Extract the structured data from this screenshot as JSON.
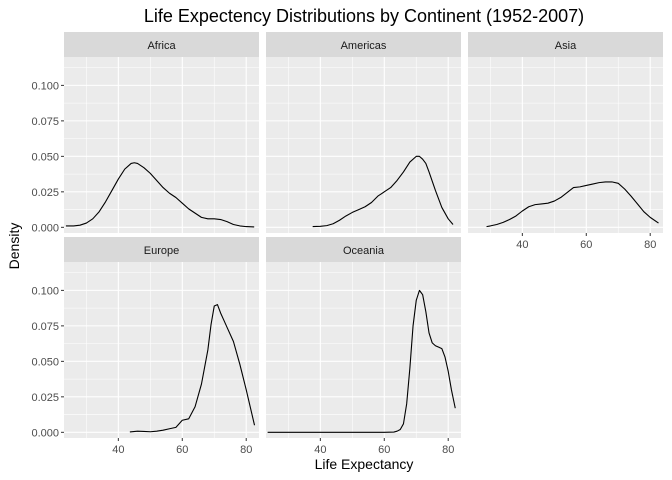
{
  "chart_data": {
    "type": "line",
    "title": "Life Expectency Distributions by Continent (1952-2007)",
    "xlabel": "Life Expectancy",
    "ylabel": "Density",
    "xlim": [
      23,
      84
    ],
    "ylim": [
      -0.004,
      0.12
    ],
    "x_ticks": [
      40,
      60,
      80
    ],
    "x_tick_labels": [
      "40",
      "60",
      "80"
    ],
    "y_ticks": [
      0,
      0.025,
      0.05,
      0.075,
      0.1
    ],
    "y_tick_labels": [
      "0.000",
      "0.025",
      "0.050",
      "0.075",
      "0.100"
    ],
    "grid": true,
    "facet_layout": "wrap, 3 columns",
    "colors": {
      "panel_bg": "#ebebeb",
      "grid_major": "#ffffff",
      "strip_bg": "#d9d9d9",
      "line": "#000000"
    },
    "series": [
      {
        "name": "Africa",
        "x": [
          23.6,
          26,
          28,
          30,
          32,
          34,
          36,
          38,
          40,
          42,
          44,
          45,
          46,
          48,
          50,
          52,
          54,
          56,
          58,
          60,
          62,
          64,
          66,
          68,
          70,
          72,
          74,
          76,
          78,
          80,
          82.5
        ],
        "y": [
          0.001,
          0.001,
          0.0015,
          0.003,
          0.006,
          0.011,
          0.018,
          0.026,
          0.034,
          0.041,
          0.045,
          0.0455,
          0.045,
          0.042,
          0.038,
          0.033,
          0.028,
          0.024,
          0.021,
          0.017,
          0.013,
          0.01,
          0.007,
          0.006,
          0.006,
          0.0055,
          0.004,
          0.002,
          0.001,
          0.0005,
          0.0003
        ]
      },
      {
        "name": "Americas",
        "x": [
          37.6,
          40,
          42,
          44,
          46,
          48,
          50,
          52,
          54,
          56,
          58,
          60,
          62,
          64,
          66,
          68,
          70,
          71,
          72,
          73,
          74,
          76,
          78,
          80,
          81.5
        ],
        "y": [
          0.0005,
          0.0007,
          0.0012,
          0.0025,
          0.005,
          0.008,
          0.0105,
          0.0125,
          0.0145,
          0.0175,
          0.022,
          0.025,
          0.028,
          0.033,
          0.039,
          0.046,
          0.05,
          0.05,
          0.048,
          0.045,
          0.039,
          0.026,
          0.014,
          0.006,
          0.002
        ]
      },
      {
        "name": "Asia",
        "x": [
          28.8,
          30,
          32,
          34,
          36,
          38,
          40,
          42,
          44,
          46,
          48,
          50,
          52,
          54,
          56,
          58,
          60,
          62,
          64,
          66,
          68,
          70,
          72,
          74,
          76,
          78,
          80,
          82.6
        ],
        "y": [
          0.0005,
          0.001,
          0.002,
          0.0035,
          0.0055,
          0.008,
          0.0115,
          0.0145,
          0.016,
          0.0165,
          0.017,
          0.0185,
          0.021,
          0.0245,
          0.028,
          0.0285,
          0.0295,
          0.0305,
          0.0315,
          0.032,
          0.032,
          0.031,
          0.027,
          0.022,
          0.0165,
          0.011,
          0.007,
          0.003
        ]
      },
      {
        "name": "Europe",
        "x": [
          43.6,
          46,
          48,
          50,
          52,
          54,
          56,
          58,
          60,
          62,
          64,
          66,
          68,
          69,
          70,
          71,
          72,
          73,
          74,
          76,
          78,
          80,
          82.6
        ],
        "y": [
          0.0003,
          0.0008,
          0.0006,
          0.0004,
          0.0008,
          0.0015,
          0.0025,
          0.0035,
          0.0085,
          0.0095,
          0.018,
          0.034,
          0.058,
          0.076,
          0.089,
          0.09,
          0.084,
          0.079,
          0.074,
          0.064,
          0.048,
          0.03,
          0.005
        ]
      },
      {
        "name": "Oceania",
        "x": [
          23.5,
          40,
          55,
          60,
          63,
          64,
          65,
          66,
          67,
          68,
          69,
          70,
          71,
          72,
          73,
          74,
          75,
          76,
          77,
          78,
          79,
          80,
          81,
          82.2
        ],
        "y": [
          0,
          0,
          0,
          0,
          0.0002,
          0.0008,
          0.002,
          0.006,
          0.02,
          0.045,
          0.075,
          0.093,
          0.1,
          0.097,
          0.085,
          0.07,
          0.063,
          0.061,
          0.06,
          0.059,
          0.053,
          0.043,
          0.03,
          0.017
        ]
      }
    ]
  }
}
